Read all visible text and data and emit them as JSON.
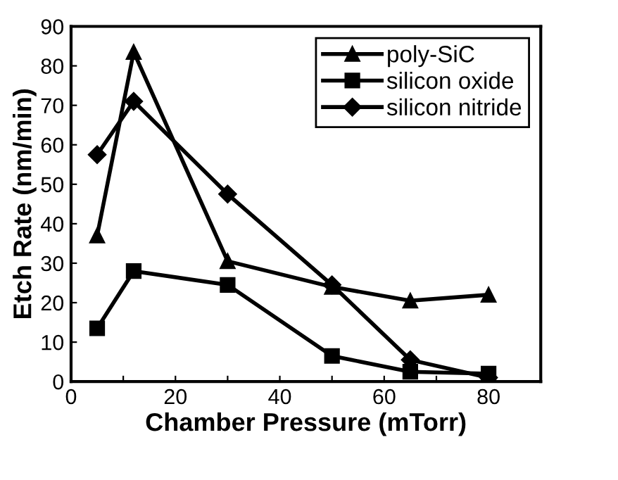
{
  "chart_data": {
    "type": "line",
    "xlabel": "Chamber Pressure (mTorr)",
    "ylabel": "Etch Rate (nm/min)",
    "x": [
      5,
      12,
      30,
      50,
      65,
      80
    ],
    "series": [
      {
        "name": "poly-SiC",
        "color": "#000000",
        "marker": "triangle",
        "values": [
          37,
          83.5,
          30.5,
          24,
          20.5,
          22
        ]
      },
      {
        "name": "silicon oxide",
        "color": "#000000",
        "marker": "square",
        "values": [
          13.5,
          28,
          24.5,
          6.5,
          2.5,
          2
        ]
      },
      {
        "name": "silicon nitride",
        "color": "#000000",
        "marker": "diamond",
        "values": [
          57.5,
          71,
          47.5,
          24.5,
          5.5,
          1
        ]
      }
    ],
    "xlim": [
      0,
      90
    ],
    "xticks": [
      0,
      {
        "value": 10,
        "label": null
      },
      20,
      {
        "value": 30,
        "label": null
      },
      40,
      {
        "value": 50,
        "label": null
      },
      60,
      {
        "value": 70,
        "label": null
      },
      80,
      {
        "value": 90,
        "label": null
      }
    ],
    "ylim": [
      0,
      90
    ],
    "yticks": [
      0,
      10,
      20,
      30,
      40,
      50,
      60,
      70,
      80,
      90
    ],
    "grid": false,
    "legend": "top right",
    "line_style": "solid"
  }
}
